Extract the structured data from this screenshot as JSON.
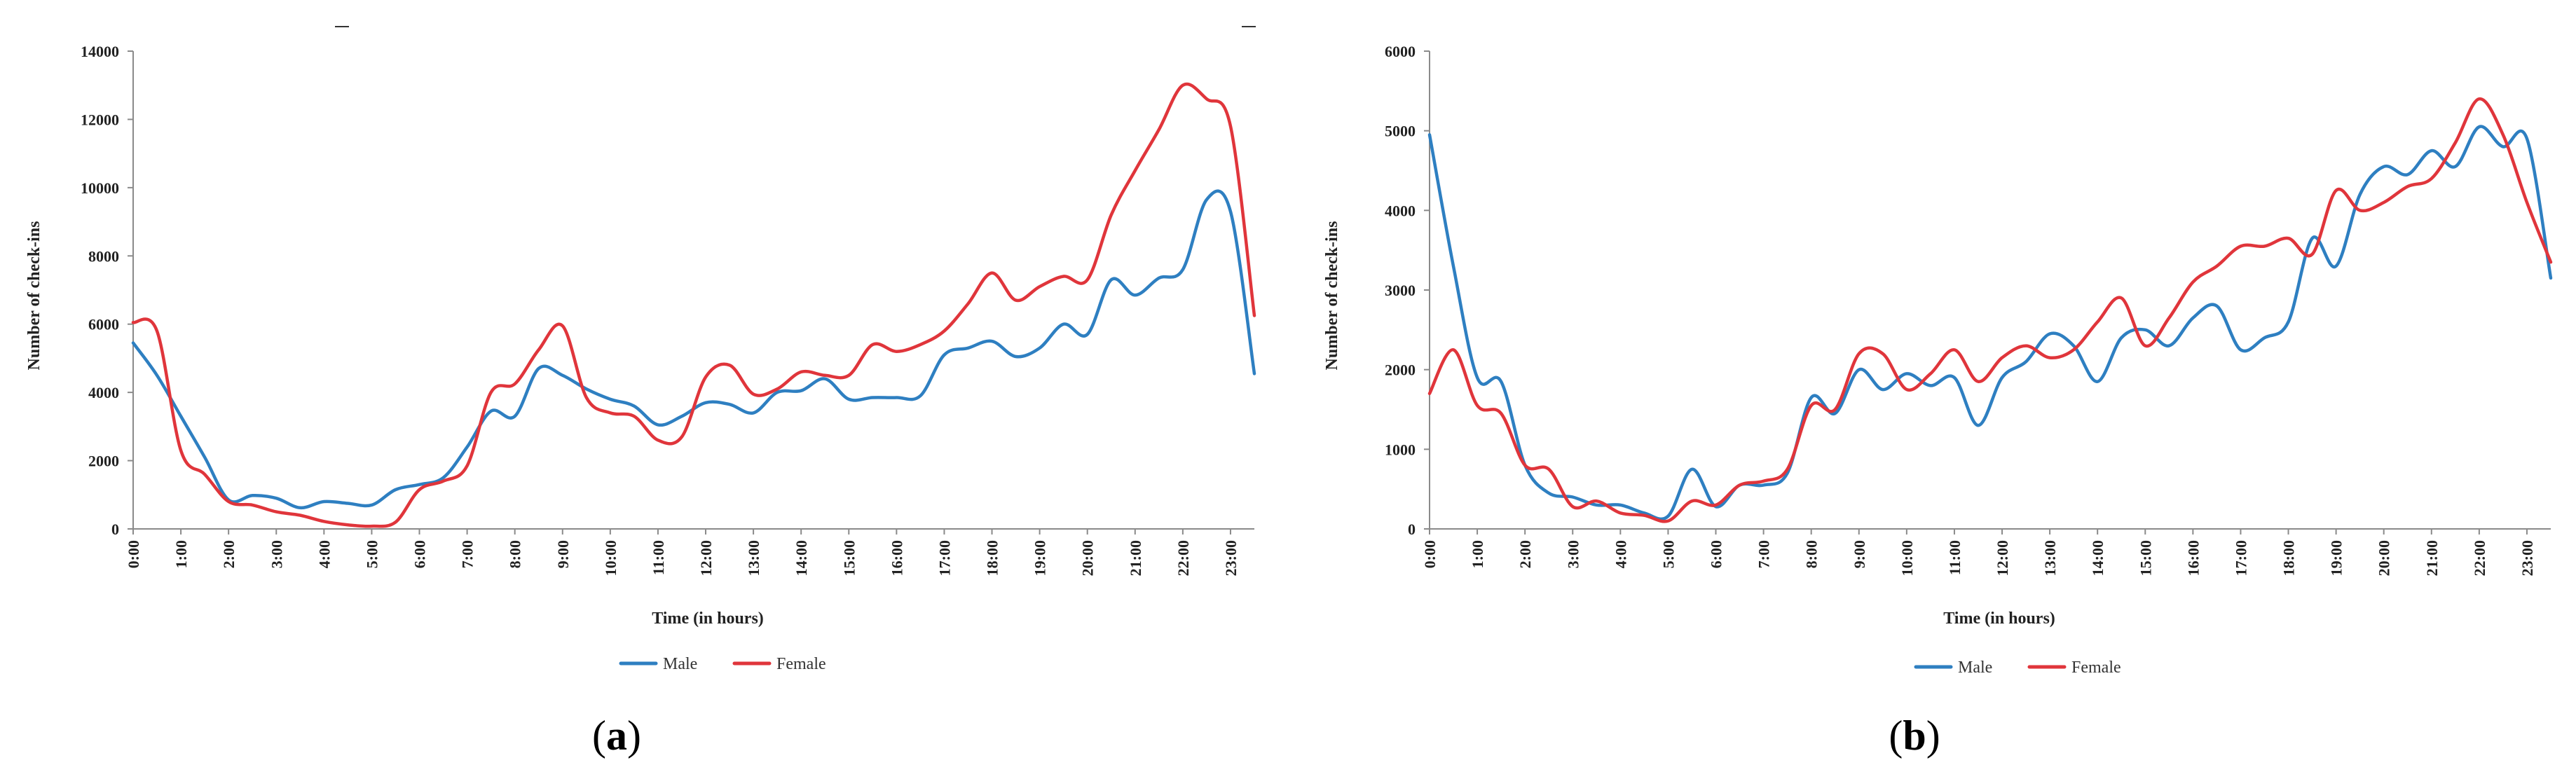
{
  "colors": {
    "male": "#2E7FC1",
    "female": "#E0353B",
    "axis": "#8a8a8a",
    "text": "#222222"
  },
  "chart_data": [
    {
      "type": "line",
      "panel_label": "a",
      "xlabel": "Time (in hours)",
      "ylabel": "Number of check-ins",
      "ylim": [
        0,
        14000
      ],
      "yticks": [
        0,
        2000,
        4000,
        6000,
        8000,
        10000,
        12000,
        14000
      ],
      "ytick_labels": [
        "0",
        "2000",
        "4000",
        "6000",
        "8000",
        "10000",
        "12000",
        "14000"
      ],
      "xlim": [
        0,
        23.5
      ],
      "xticks": [
        0,
        1,
        2,
        3,
        4,
        5,
        6,
        7,
        8,
        9,
        10,
        11,
        12,
        13,
        14,
        15,
        16,
        17,
        18,
        19,
        20,
        21,
        22,
        23
      ],
      "xtick_labels": [
        "0:00",
        "1:00",
        "2:00",
        "3:00",
        "4:00",
        "5:00",
        "6:00",
        "7:00",
        "8:00",
        "9:00",
        "10:00",
        "11:00",
        "12:00",
        "13:00",
        "14:00",
        "15:00",
        "16:00",
        "17:00",
        "18:00",
        "19:00",
        "20:00",
        "21:00",
        "22:00",
        "23:00"
      ],
      "legend": [
        "Male",
        "Female"
      ],
      "series": [
        {
          "name": "Male",
          "x": [
            0,
            0.5,
            1,
            1.5,
            2,
            2.5,
            3,
            3.5,
            4,
            4.5,
            5,
            5.5,
            6,
            6.5,
            7,
            7.5,
            8,
            8.5,
            9,
            9.5,
            10,
            10.5,
            11,
            11.5,
            12,
            12.5,
            13,
            13.5,
            14,
            14.5,
            15,
            15.5,
            16,
            16.5,
            17,
            17.5,
            18,
            18.5,
            19,
            19.5,
            20,
            20.5,
            21,
            21.5,
            22,
            22.5,
            23,
            23.5
          ],
          "y": [
            5450,
            4500,
            3300,
            2100,
            850,
            980,
            900,
            620,
            800,
            750,
            700,
            1150,
            1300,
            1500,
            2400,
            3450,
            3300,
            4700,
            4500,
            4100,
            3800,
            3600,
            3050,
            3300,
            3700,
            3650,
            3400,
            4000,
            4050,
            4400,
            3800,
            3850,
            3850,
            3900,
            5100,
            5300,
            5500,
            5050,
            5300,
            6000,
            5700,
            7300,
            6850,
            7350,
            7600,
            9650,
            9300,
            4550
          ]
        },
        {
          "name": "Female",
          "x": [
            0,
            0.5,
            1,
            1.5,
            2,
            2.5,
            3,
            3.5,
            4,
            4.5,
            5,
            5.5,
            6,
            6.5,
            7,
            7.5,
            8,
            8.5,
            9,
            9.5,
            10,
            10.5,
            11,
            11.5,
            12,
            12.5,
            13,
            13.5,
            14,
            14.5,
            15,
            15.5,
            16,
            16.5,
            17,
            17.5,
            18,
            18.5,
            19,
            19.5,
            20,
            20.5,
            21,
            21.5,
            22,
            22.5,
            23,
            23.5
          ],
          "y": [
            6050,
            5800,
            2300,
            1600,
            800,
            700,
            500,
            400,
            220,
            120,
            80,
            200,
            1150,
            1400,
            1850,
            4000,
            4250,
            5250,
            5950,
            3850,
            3400,
            3300,
            2600,
            2700,
            4450,
            4800,
            3950,
            4100,
            4600,
            4500,
            4500,
            5400,
            5200,
            5400,
            5800,
            6600,
            7500,
            6700,
            7100,
            7400,
            7300,
            9200,
            10500,
            11700,
            13000,
            12600,
            11800,
            6250
          ]
        }
      ]
    },
    {
      "type": "line",
      "panel_label": "b",
      "xlabel": "Time (in hours)",
      "ylabel": "Number of check-ins",
      "ylim": [
        0,
        6000
      ],
      "yticks": [
        0,
        1000,
        2000,
        3000,
        4000,
        5000,
        6000
      ],
      "ytick_labels": [
        "0",
        "1000",
        "2000",
        "3000",
        "4000",
        "5000",
        "6000"
      ],
      "xlim": [
        0,
        23.5
      ],
      "xticks": [
        0,
        1,
        2,
        3,
        4,
        5,
        6,
        7,
        8,
        9,
        10,
        11,
        12,
        13,
        14,
        15,
        16,
        17,
        18,
        19,
        20,
        21,
        22,
        23
      ],
      "xtick_labels": [
        "0:00",
        "1:00",
        "2:00",
        "3:00",
        "4:00",
        "5:00",
        "6:00",
        "7:00",
        "8:00",
        "9:00",
        "10:00",
        "11:00",
        "12:00",
        "13:00",
        "14:00",
        "15:00",
        "16:00",
        "17:00",
        "18:00",
        "19:00",
        "20:00",
        "21:00",
        "22:00",
        "23:00"
      ],
      "legend": [
        "Male",
        "Female"
      ],
      "series": [
        {
          "name": "Male",
          "x": [
            0,
            0.5,
            1,
            1.5,
            2,
            2.5,
            3,
            3.5,
            4,
            4.5,
            5,
            5.5,
            6,
            6.5,
            7,
            7.5,
            8,
            8.5,
            9,
            9.5,
            10,
            10.5,
            11,
            11.5,
            12,
            12.5,
            13,
            13.5,
            14,
            14.5,
            15,
            15.5,
            16,
            16.5,
            17,
            17.5,
            18,
            18.5,
            19,
            19.5,
            20,
            20.5,
            21,
            21.5,
            22,
            22.5,
            23,
            23.5
          ],
          "y": [
            4950,
            3300,
            1900,
            1850,
            800,
            450,
            400,
            300,
            300,
            200,
            160,
            750,
            280,
            550,
            550,
            700,
            1650,
            1450,
            2000,
            1750,
            1950,
            1800,
            1900,
            1300,
            1900,
            2100,
            2450,
            2300,
            1850,
            2400,
            2500,
            2300,
            2650,
            2800,
            2250,
            2400,
            2600,
            3650,
            3300,
            4200,
            4550,
            4450,
            4750,
            4550,
            5050,
            4800,
            4900,
            3150
          ]
        },
        {
          "name": "Female",
          "x": [
            0,
            0.5,
            1,
            1.5,
            2,
            2.5,
            3,
            3.5,
            4,
            4.5,
            5,
            5.5,
            6,
            6.5,
            7,
            7.5,
            8,
            8.5,
            9,
            9.5,
            10,
            10.5,
            11,
            11.5,
            12,
            12.5,
            13,
            13.5,
            14,
            14.5,
            15,
            15.5,
            16,
            16.5,
            17,
            17.5,
            18,
            18.5,
            19,
            19.5,
            20,
            20.5,
            21,
            21.5,
            22,
            22.5,
            23,
            23.5
          ],
          "y": [
            1700,
            2250,
            1550,
            1450,
            800,
            750,
            280,
            350,
            200,
            170,
            100,
            350,
            300,
            550,
            600,
            750,
            1550,
            1500,
            2200,
            2200,
            1750,
            1950,
            2250,
            1850,
            2150,
            2300,
            2150,
            2250,
            2600,
            2900,
            2300,
            2650,
            3100,
            3300,
            3550,
            3550,
            3650,
            3450,
            4250,
            4000,
            4100,
            4300,
            4400,
            4850,
            5400,
            4950,
            4100,
            3350
          ]
        }
      ]
    }
  ]
}
